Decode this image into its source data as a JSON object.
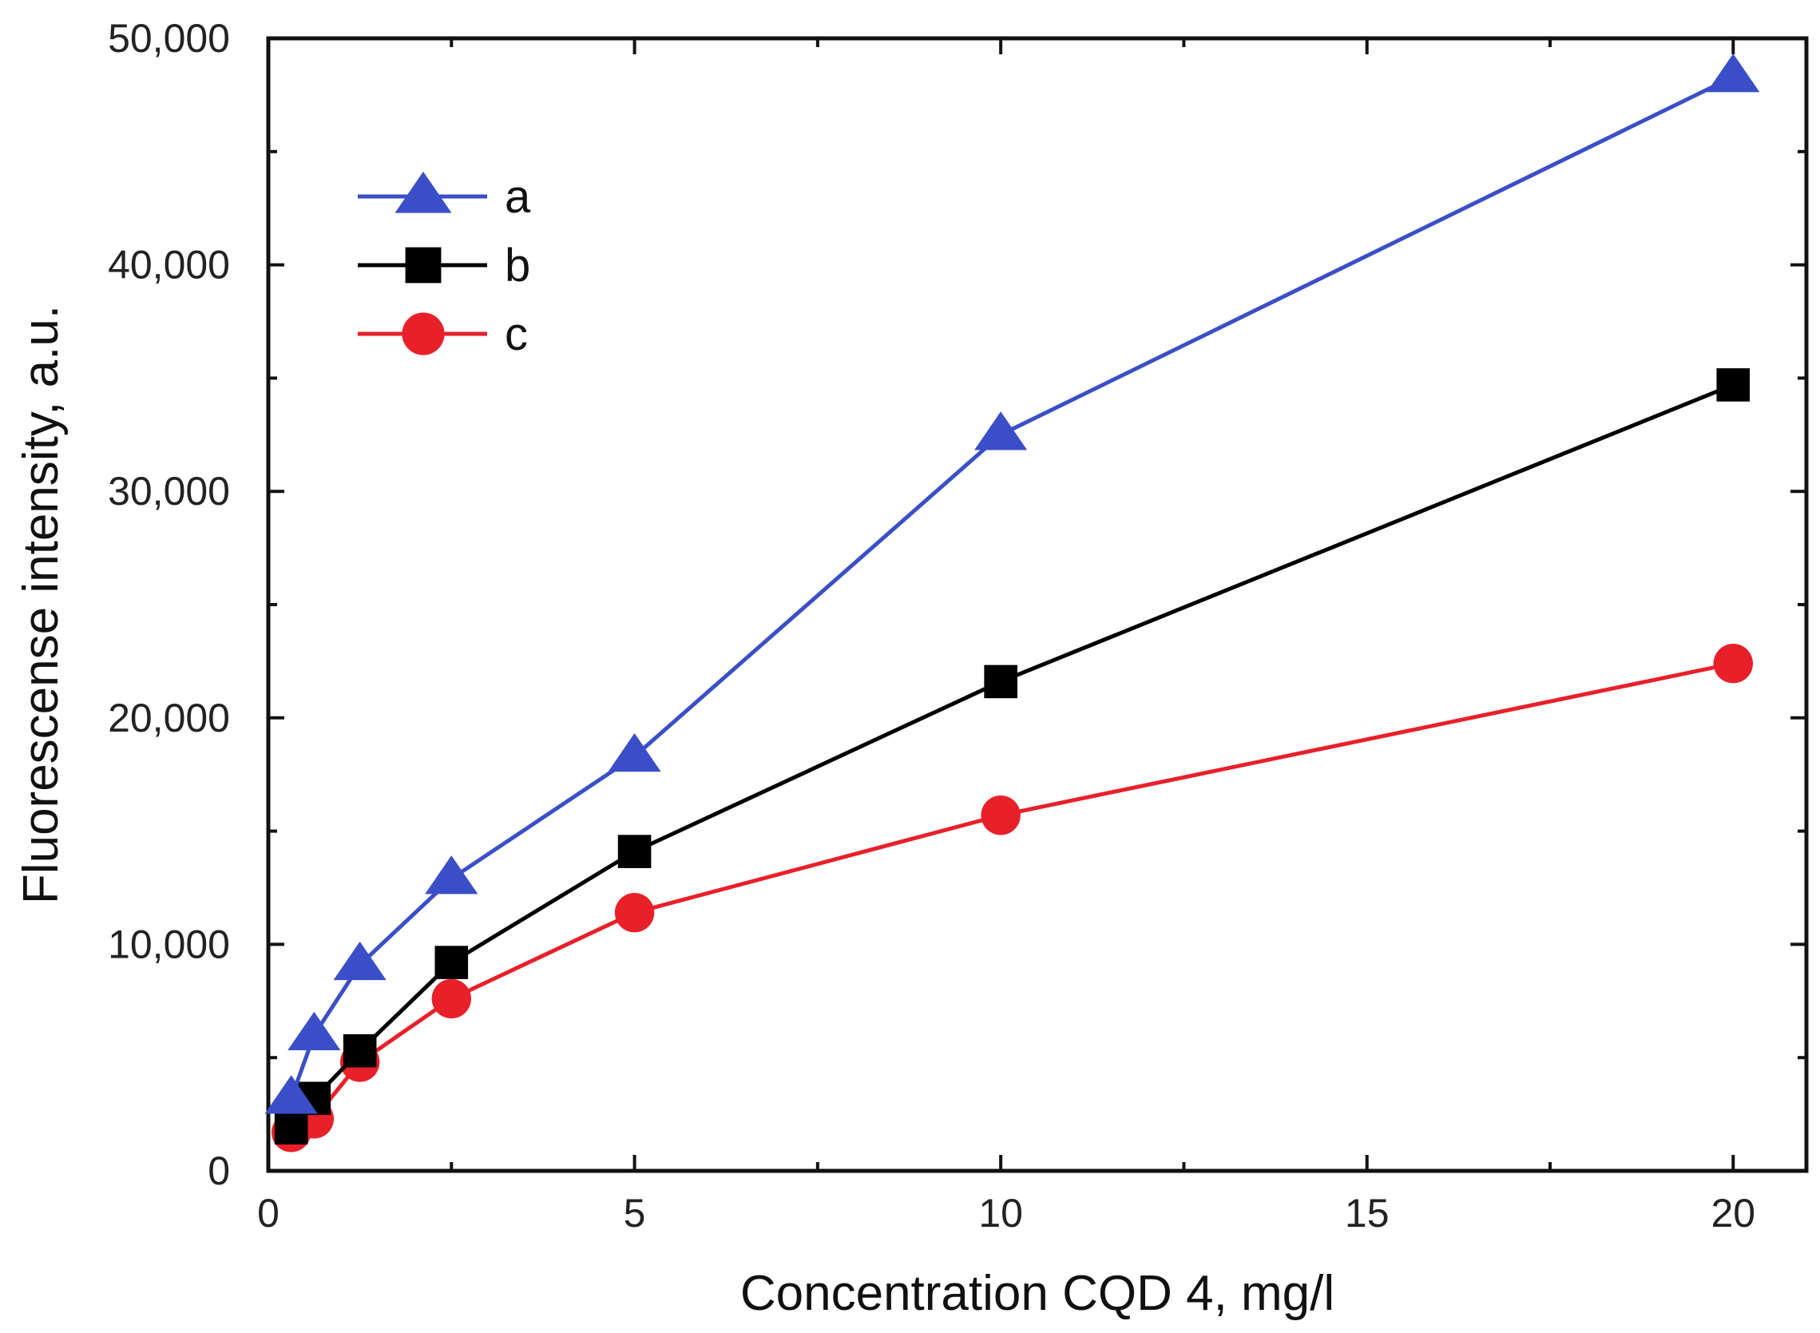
{
  "chart_data": {
    "type": "line",
    "title": "",
    "xlabel": "Concentration CQD 4, mg/l",
    "ylabel": "Fluorescense intensity, a.u.",
    "xlim": [
      0,
      21
    ],
    "ylim": [
      0,
      50000
    ],
    "x_ticks": [
      0,
      5,
      10,
      15,
      20
    ],
    "x_tick_labels": [
      "0",
      "5",
      "10",
      "15",
      "20"
    ],
    "x_minor_ticks": [
      2.5,
      7.5,
      12.5,
      17.5
    ],
    "y_ticks": [
      0,
      10000,
      20000,
      30000,
      40000,
      50000
    ],
    "y_tick_labels": [
      "0",
      "10,000",
      "20,000",
      "30,000",
      "40,000",
      "50,000"
    ],
    "y_minor_ticks": [
      5000,
      15000,
      25000,
      35000,
      45000
    ],
    "grid": false,
    "legend_position": "top-left",
    "series": [
      {
        "name": "a",
        "color": "#3a4fc7",
        "marker": "triangle",
        "x": [
          0.3125,
          0.625,
          1.25,
          2.5,
          5,
          10,
          20
        ],
        "values": [
          3200,
          6000,
          9100,
          12900,
          18300,
          32500,
          48300
        ]
      },
      {
        "name": "b",
        "color": "#000000",
        "marker": "square",
        "x": [
          0.3125,
          0.625,
          1.25,
          2.5,
          5,
          10,
          20
        ],
        "values": [
          1900,
          3200,
          5300,
          9200,
          14100,
          21600,
          34700
        ]
      },
      {
        "name": "c",
        "color": "#e8202a",
        "marker": "circle",
        "x": [
          0.3125,
          0.625,
          1.25,
          2.5,
          5,
          10,
          20
        ],
        "values": [
          1700,
          2300,
          4800,
          7600,
          11400,
          15700,
          22400
        ]
      }
    ]
  }
}
